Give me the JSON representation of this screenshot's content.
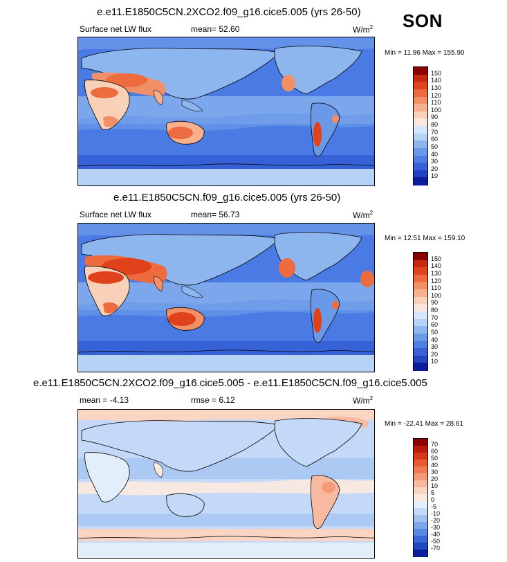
{
  "season": "SON",
  "panels": [
    {
      "title": "e.e11.E1850C5CN.2XCO2.f09_g16.cice5.005 (yrs 26-50)",
      "variable": "Surface net LW flux",
      "stat_label": "mean=",
      "stat_value": "52.60",
      "unit": "W/m",
      "unit_sup": "2",
      "minmax": "Min = 11.96 Max = 155.90",
      "colorbar_levels": [
        "150",
        "140",
        "130",
        "120",
        "110",
        "100",
        "90",
        "80",
        "70",
        "60",
        "50",
        "40",
        "30",
        "20",
        "10"
      ],
      "colorbar_colors": [
        "#8b0000",
        "#c62910",
        "#e0431b",
        "#ee6b3f",
        "#f38f66",
        "#f6b08e",
        "#f9d0b8",
        "#fbe7dc",
        "#d6e7fb",
        "#b6d3f6",
        "#8db6ef",
        "#6a99e8",
        "#4f7ee2",
        "#3a5fd6",
        "#2443c4",
        "#0c1e9c"
      ]
    },
    {
      "title": "e.e11.E1850C5CN.f09_g16.cice5.005 (yrs 26-50)",
      "variable": "Surface net LW flux",
      "stat_label": "mean=",
      "stat_value": "56.73",
      "unit": "W/m",
      "unit_sup": "2",
      "minmax": "Min = 12.51 Max = 159.10",
      "colorbar_levels": [
        "150",
        "140",
        "130",
        "120",
        "110",
        "100",
        "90",
        "80",
        "70",
        "60",
        "50",
        "40",
        "30",
        "20",
        "10"
      ],
      "colorbar_colors": [
        "#8b0000",
        "#c62910",
        "#e0431b",
        "#ee6b3f",
        "#f38f66",
        "#f6b08e",
        "#f9d0b8",
        "#fbe7dc",
        "#d6e7fb",
        "#b6d3f6",
        "#8db6ef",
        "#6a99e8",
        "#4f7ee2",
        "#3a5fd6",
        "#2443c4",
        "#0c1e9c"
      ]
    },
    {
      "title": "e.e11.E1850C5CN.2XCO2.f09_g16.cice5.005 - e.e11.E1850C5CN.f09_g16.cice5.005",
      "stat_label": "mean =",
      "stat_value": "-4.13",
      "stat2_label": "rmse =",
      "stat2_value": "6.12",
      "unit": "W/m",
      "unit_sup": "2",
      "minmax": "Min = -22.41 Max =  28.61",
      "colorbar_levels": [
        "70",
        "60",
        "50",
        "40",
        "30",
        "20",
        "10",
        "5",
        "0",
        "-5",
        "-10",
        "-20",
        "-30",
        "-40",
        "-50",
        "-70"
      ],
      "colorbar_colors": [
        "#8b0000",
        "#b81c0c",
        "#d43a18",
        "#e85a30",
        "#f07a52",
        "#f49a78",
        "#f7baa0",
        "#fad5c4",
        "#fde9df",
        "#e3eefb",
        "#c3d9f7",
        "#a1c2f1",
        "#7ea6ea",
        "#5c88e2",
        "#3c68d6",
        "#2347c2",
        "#0c1e9c"
      ]
    }
  ]
}
